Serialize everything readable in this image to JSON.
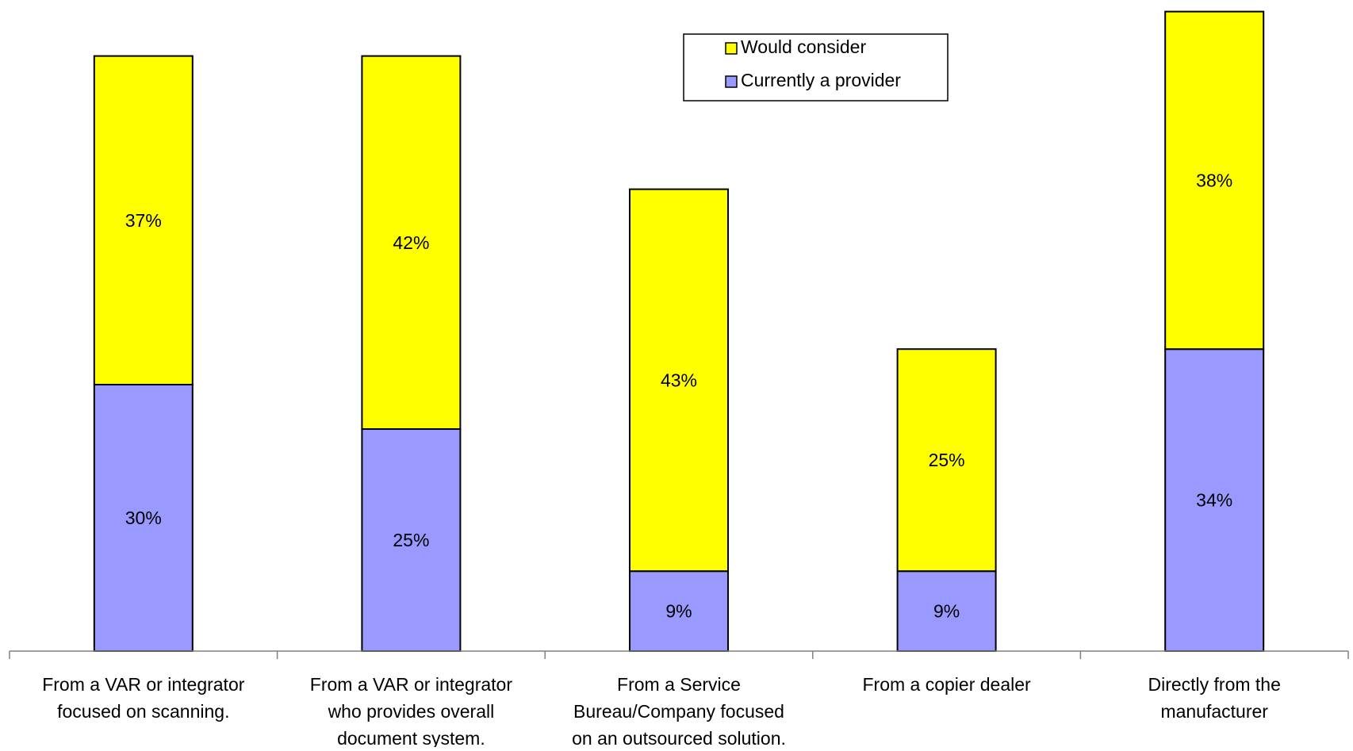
{
  "chart_data": {
    "type": "bar",
    "stacked": true,
    "title": "",
    "xlabel": "",
    "ylabel": "",
    "ylim": [
      0,
      80
    ],
    "grid": false,
    "legend_position": "top-center",
    "categories": [
      [
        "From a VAR or integrator",
        "focused on scanning."
      ],
      [
        "From a VAR or integrator",
        "who provides overall",
        "document system."
      ],
      [
        "From a Service",
        "Bureau/Company focused",
        "on an outsourced solution."
      ],
      [
        "From a copier dealer"
      ],
      [
        "Directly from the",
        "manufacturer"
      ]
    ],
    "series": [
      {
        "name": "Currently a provider",
        "color": "#9999ff",
        "values": [
          30,
          25,
          9,
          9,
          34
        ],
        "labels": [
          "30%",
          "25%",
          "9%",
          "9%",
          "34%"
        ]
      },
      {
        "name": "Would consider",
        "color": "#ffff00",
        "values": [
          37,
          42,
          43,
          25,
          38
        ],
        "labels": [
          "37%",
          "42%",
          "43%",
          "25%",
          "38%"
        ]
      }
    ],
    "legend_order": [
      "Would consider",
      "Currently a provider"
    ]
  }
}
